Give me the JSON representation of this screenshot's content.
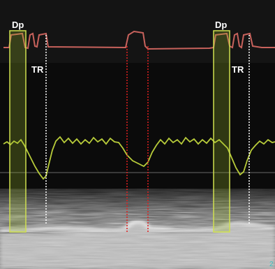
{
  "annotations": [
    "Dp",
    "TR",
    "Dp",
    "TR"
  ],
  "scale_label": "2"
}
